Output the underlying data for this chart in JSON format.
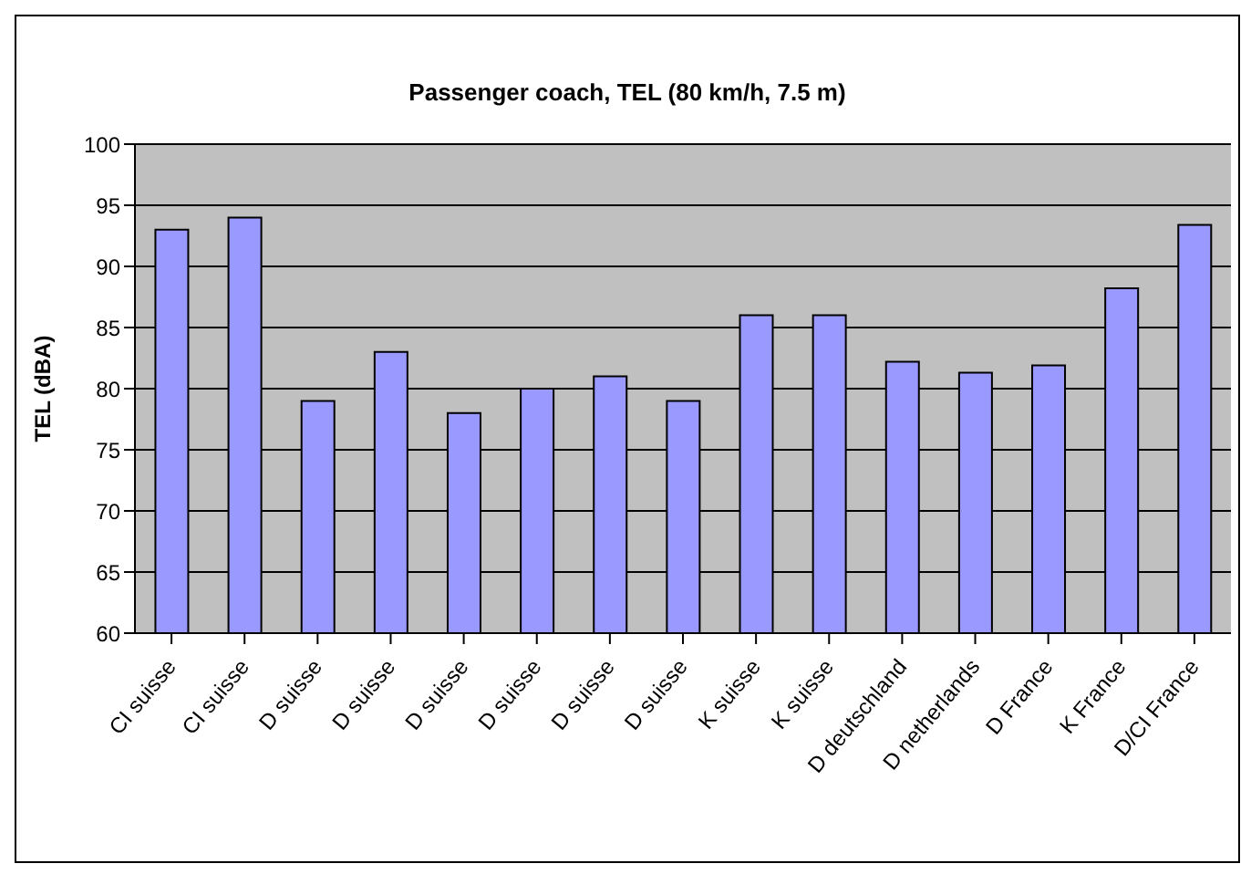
{
  "chart_data": {
    "type": "bar",
    "title": "Passenger coach, TEL (80 km/h, 7.5 m)",
    "ylabel": "TEL (dBA)",
    "categories": [
      "CI suisse",
      "CI suisse",
      "D suisse",
      "D suisse",
      "D suisse",
      "D suisse",
      "D suisse",
      "D suisse",
      "K suisse",
      "K suisse",
      "D deutschland",
      "D netherlands",
      "D France",
      "K France",
      "D/CI France"
    ],
    "values": [
      93,
      94,
      79,
      83,
      78,
      80,
      81,
      79,
      86,
      86,
      82.2,
      81.3,
      81.9,
      88.2,
      93.4
    ],
    "color": "#9999ff",
    "ylim": [
      60,
      100
    ],
    "yticks": [
      60,
      65,
      70,
      75,
      80,
      85,
      90,
      95,
      100
    ],
    "grid": "y"
  }
}
